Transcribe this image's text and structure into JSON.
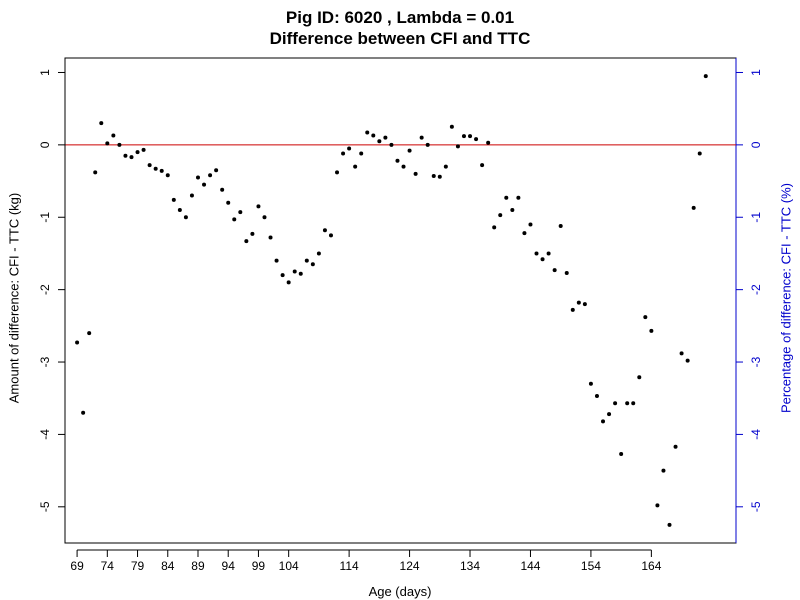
{
  "chart_data": {
    "type": "scatter",
    "title": "Pig ID: 6020 , Lambda = 0.01",
    "subtitle": "Difference between CFI and TTC",
    "xlabel": "Age (days)",
    "ylabel": "Amount of difference: CFI - TTC (kg)",
    "ylabel_right": "Percentage of difference: CFI - TTC (%)",
    "xlim": [
      67,
      178
    ],
    "ylim": [
      -5.5,
      1.2
    ],
    "x_ticks": [
      69,
      74,
      79,
      84,
      89,
      94,
      99,
      104,
      114,
      124,
      134,
      144,
      154,
      164
    ],
    "y_ticks": [
      1,
      0,
      -1,
      -2,
      -3,
      -4,
      -5
    ],
    "y_ticks_right": [
      1,
      0,
      -1,
      -2,
      -3,
      -4,
      -5
    ],
    "reference_line": {
      "y": 0,
      "color": "#cc0000"
    },
    "point_color": "#000000",
    "right_axis_color": "#0000cc",
    "grid": false,
    "x": [
      69,
      70,
      71,
      72,
      73,
      74,
      75,
      76,
      77,
      78,
      79,
      80,
      81,
      82,
      83,
      84,
      85,
      86,
      87,
      88,
      89,
      90,
      91,
      92,
      93,
      94,
      95,
      96,
      97,
      98,
      99,
      100,
      101,
      102,
      103,
      104,
      105,
      106,
      107,
      108,
      109,
      110,
      111,
      112,
      113,
      114,
      115,
      116,
      117,
      118,
      119,
      120,
      121,
      122,
      123,
      124,
      125,
      126,
      127,
      128,
      129,
      130,
      131,
      132,
      133,
      134,
      135,
      136,
      137,
      138,
      139,
      140,
      141,
      142,
      143,
      144,
      145,
      146,
      147,
      148,
      149,
      150,
      151,
      152,
      153,
      154,
      155,
      156,
      157,
      158,
      159,
      160,
      161,
      162,
      163,
      164,
      165,
      166,
      167,
      168,
      169,
      170,
      171,
      172,
      173
    ],
    "y": [
      -2.73,
      -3.7,
      -2.6,
      -0.38,
      0.3,
      0.02,
      0.13,
      0.0,
      -0.15,
      -0.17,
      -0.1,
      -0.07,
      -0.28,
      -0.33,
      -0.36,
      -0.42,
      -0.76,
      -0.9,
      -1.0,
      -0.7,
      -0.45,
      -0.55,
      -0.42,
      -0.35,
      -0.62,
      -0.8,
      -1.03,
      -0.93,
      -1.33,
      -1.23,
      -0.85,
      -1.0,
      -1.28,
      -1.6,
      -1.8,
      -1.9,
      -1.75,
      -1.78,
      -1.6,
      -1.65,
      -1.5,
      -1.18,
      -1.25,
      -0.38,
      -0.12,
      -0.05,
      -0.3,
      -0.12,
      0.17,
      0.13,
      0.05,
      0.1,
      0.0,
      -0.22,
      -0.3,
      -0.08,
      -0.4,
      0.1,
      0.0,
      -0.43,
      -0.44,
      -0.3,
      0.25,
      -0.02,
      0.12,
      0.12,
      0.08,
      -0.28,
      0.03,
      -1.14,
      -0.97,
      -0.73,
      -0.9,
      -0.73,
      -1.22,
      -1.1,
      -1.5,
      -1.58,
      -1.5,
      -1.73,
      -1.12,
      -1.77,
      -2.28,
      -2.18,
      -2.2,
      -3.3,
      -3.47,
      -3.82,
      -3.72,
      -3.57,
      -4.27,
      -3.57,
      -3.57,
      -3.21,
      -2.38,
      -2.57,
      -4.98,
      -4.5,
      -5.25,
      -4.17,
      -2.88,
      -2.98,
      -0.87,
      -0.12,
      0.95
    ]
  }
}
